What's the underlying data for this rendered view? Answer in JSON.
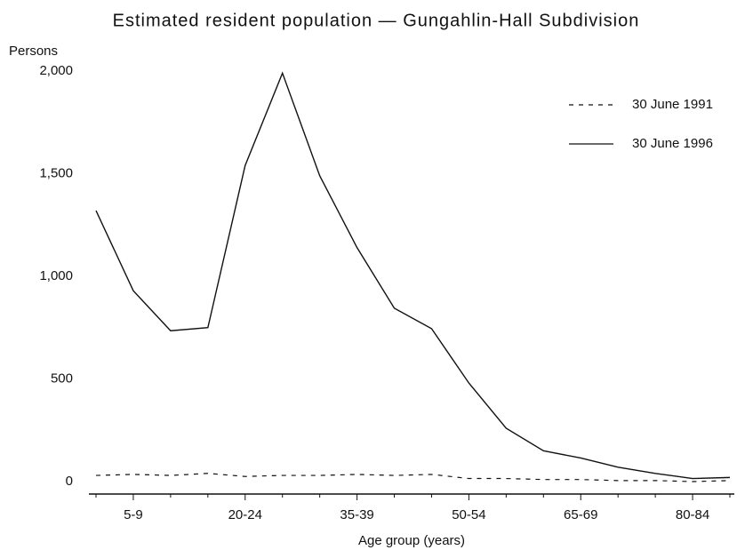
{
  "chart_data": {
    "type": "line",
    "title": "Estimated resident population — Gungahlin-Hall Subdivision",
    "y_label": "Persons",
    "x_label": "Age group (years)",
    "categories": [
      null,
      "5-9",
      null,
      null,
      "20-24",
      null,
      null,
      "35-39",
      null,
      null,
      "50-54",
      null,
      null,
      "65-69",
      null,
      null,
      "80-84",
      null
    ],
    "series": [
      {
        "name": "30 June 1991",
        "color": "#111111",
        "line_style": "dashed",
        "values": [
          30,
          35,
          30,
          40,
          25,
          30,
          30,
          35,
          30,
          35,
          15,
          15,
          10,
          10,
          5,
          5,
          0,
          5
        ]
      },
      {
        "name": "30 June 1996",
        "color": "#111111",
        "line_style": "solid",
        "values": [
          1320,
          930,
          735,
          750,
          1540,
          1990,
          1490,
          1140,
          845,
          745,
          480,
          260,
          150,
          115,
          70,
          40,
          15,
          20
        ]
      }
    ],
    "ylim": [
      0,
      2000
    ],
    "yticks": [
      {
        "value": 0,
        "label": "0"
      },
      {
        "value": 500,
        "label": "500"
      },
      {
        "value": 1000,
        "label": "1,000"
      },
      {
        "value": 1500,
        "label": "1,500"
      },
      {
        "value": 2000,
        "label": "2,000"
      }
    ],
    "legend": "upper right"
  }
}
